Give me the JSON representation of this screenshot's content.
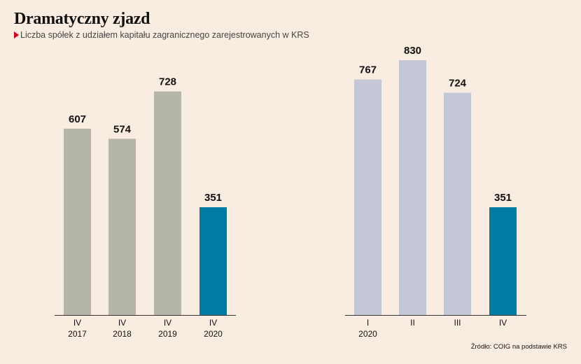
{
  "title": "Dramatyczny zjazd",
  "subtitle": "Liczba spółek z udziałem kapitału zagranicznego zarejestrowanych w KRS",
  "source": "Źródło: COIG na podstawie KRS",
  "colors": {
    "background": "#f9ece0",
    "gray_bar": "#b6b5aa",
    "blue_gray_bar": "#c3c7d6",
    "highlight": "#007ca3",
    "accent_marker": "#d0021b"
  },
  "chart_data": [
    {
      "type": "bar",
      "categories": [
        [
          "IV",
          "2017"
        ],
        [
          "IV",
          "2018"
        ],
        [
          "IV",
          "2019"
        ],
        [
          "IV",
          "2020"
        ]
      ],
      "values": [
        607,
        574,
        728,
        351
      ],
      "highlight_index": 3,
      "ylim": [
        0,
        830
      ]
    },
    {
      "type": "bar",
      "categories": [
        [
          "I",
          "2020"
        ],
        [
          "II",
          ""
        ],
        [
          "III",
          ""
        ],
        [
          "IV",
          ""
        ]
      ],
      "values": [
        767,
        830,
        724,
        351
      ],
      "highlight_index": 3,
      "ylim": [
        0,
        830
      ]
    }
  ]
}
